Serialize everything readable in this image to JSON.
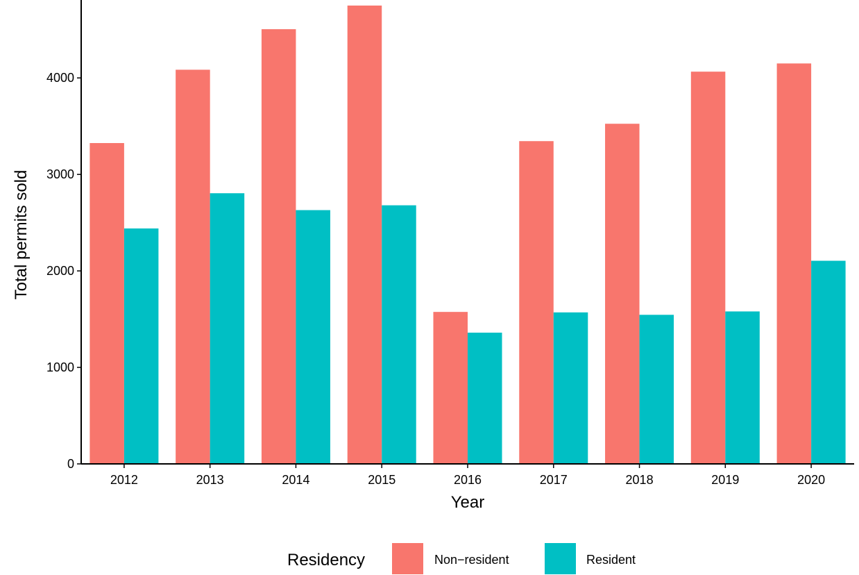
{
  "chart_data": {
    "type": "bar",
    "title": "",
    "xlabel": "Year",
    "ylabel": "Total permits sold",
    "categories": [
      "2012",
      "2013",
      "2014",
      "2015",
      "2016",
      "2017",
      "2018",
      "2019",
      "2020"
    ],
    "series": [
      {
        "name": "Non−resident",
        "color": "#F8766D",
        "values": [
          3325,
          4085,
          4505,
          4750,
          1575,
          3345,
          3525,
          4065,
          4150
        ]
      },
      {
        "name": "Resident",
        "color": "#00BFC4",
        "values": [
          2440,
          2805,
          2630,
          2680,
          1360,
          1570,
          1545,
          1580,
          2105
        ]
      }
    ],
    "ylim": [
      0,
      4750
    ],
    "yticks": [
      0,
      1000,
      2000,
      3000,
      4000
    ],
    "grid": false,
    "legend": {
      "title": "Residency",
      "position": "bottom"
    }
  }
}
